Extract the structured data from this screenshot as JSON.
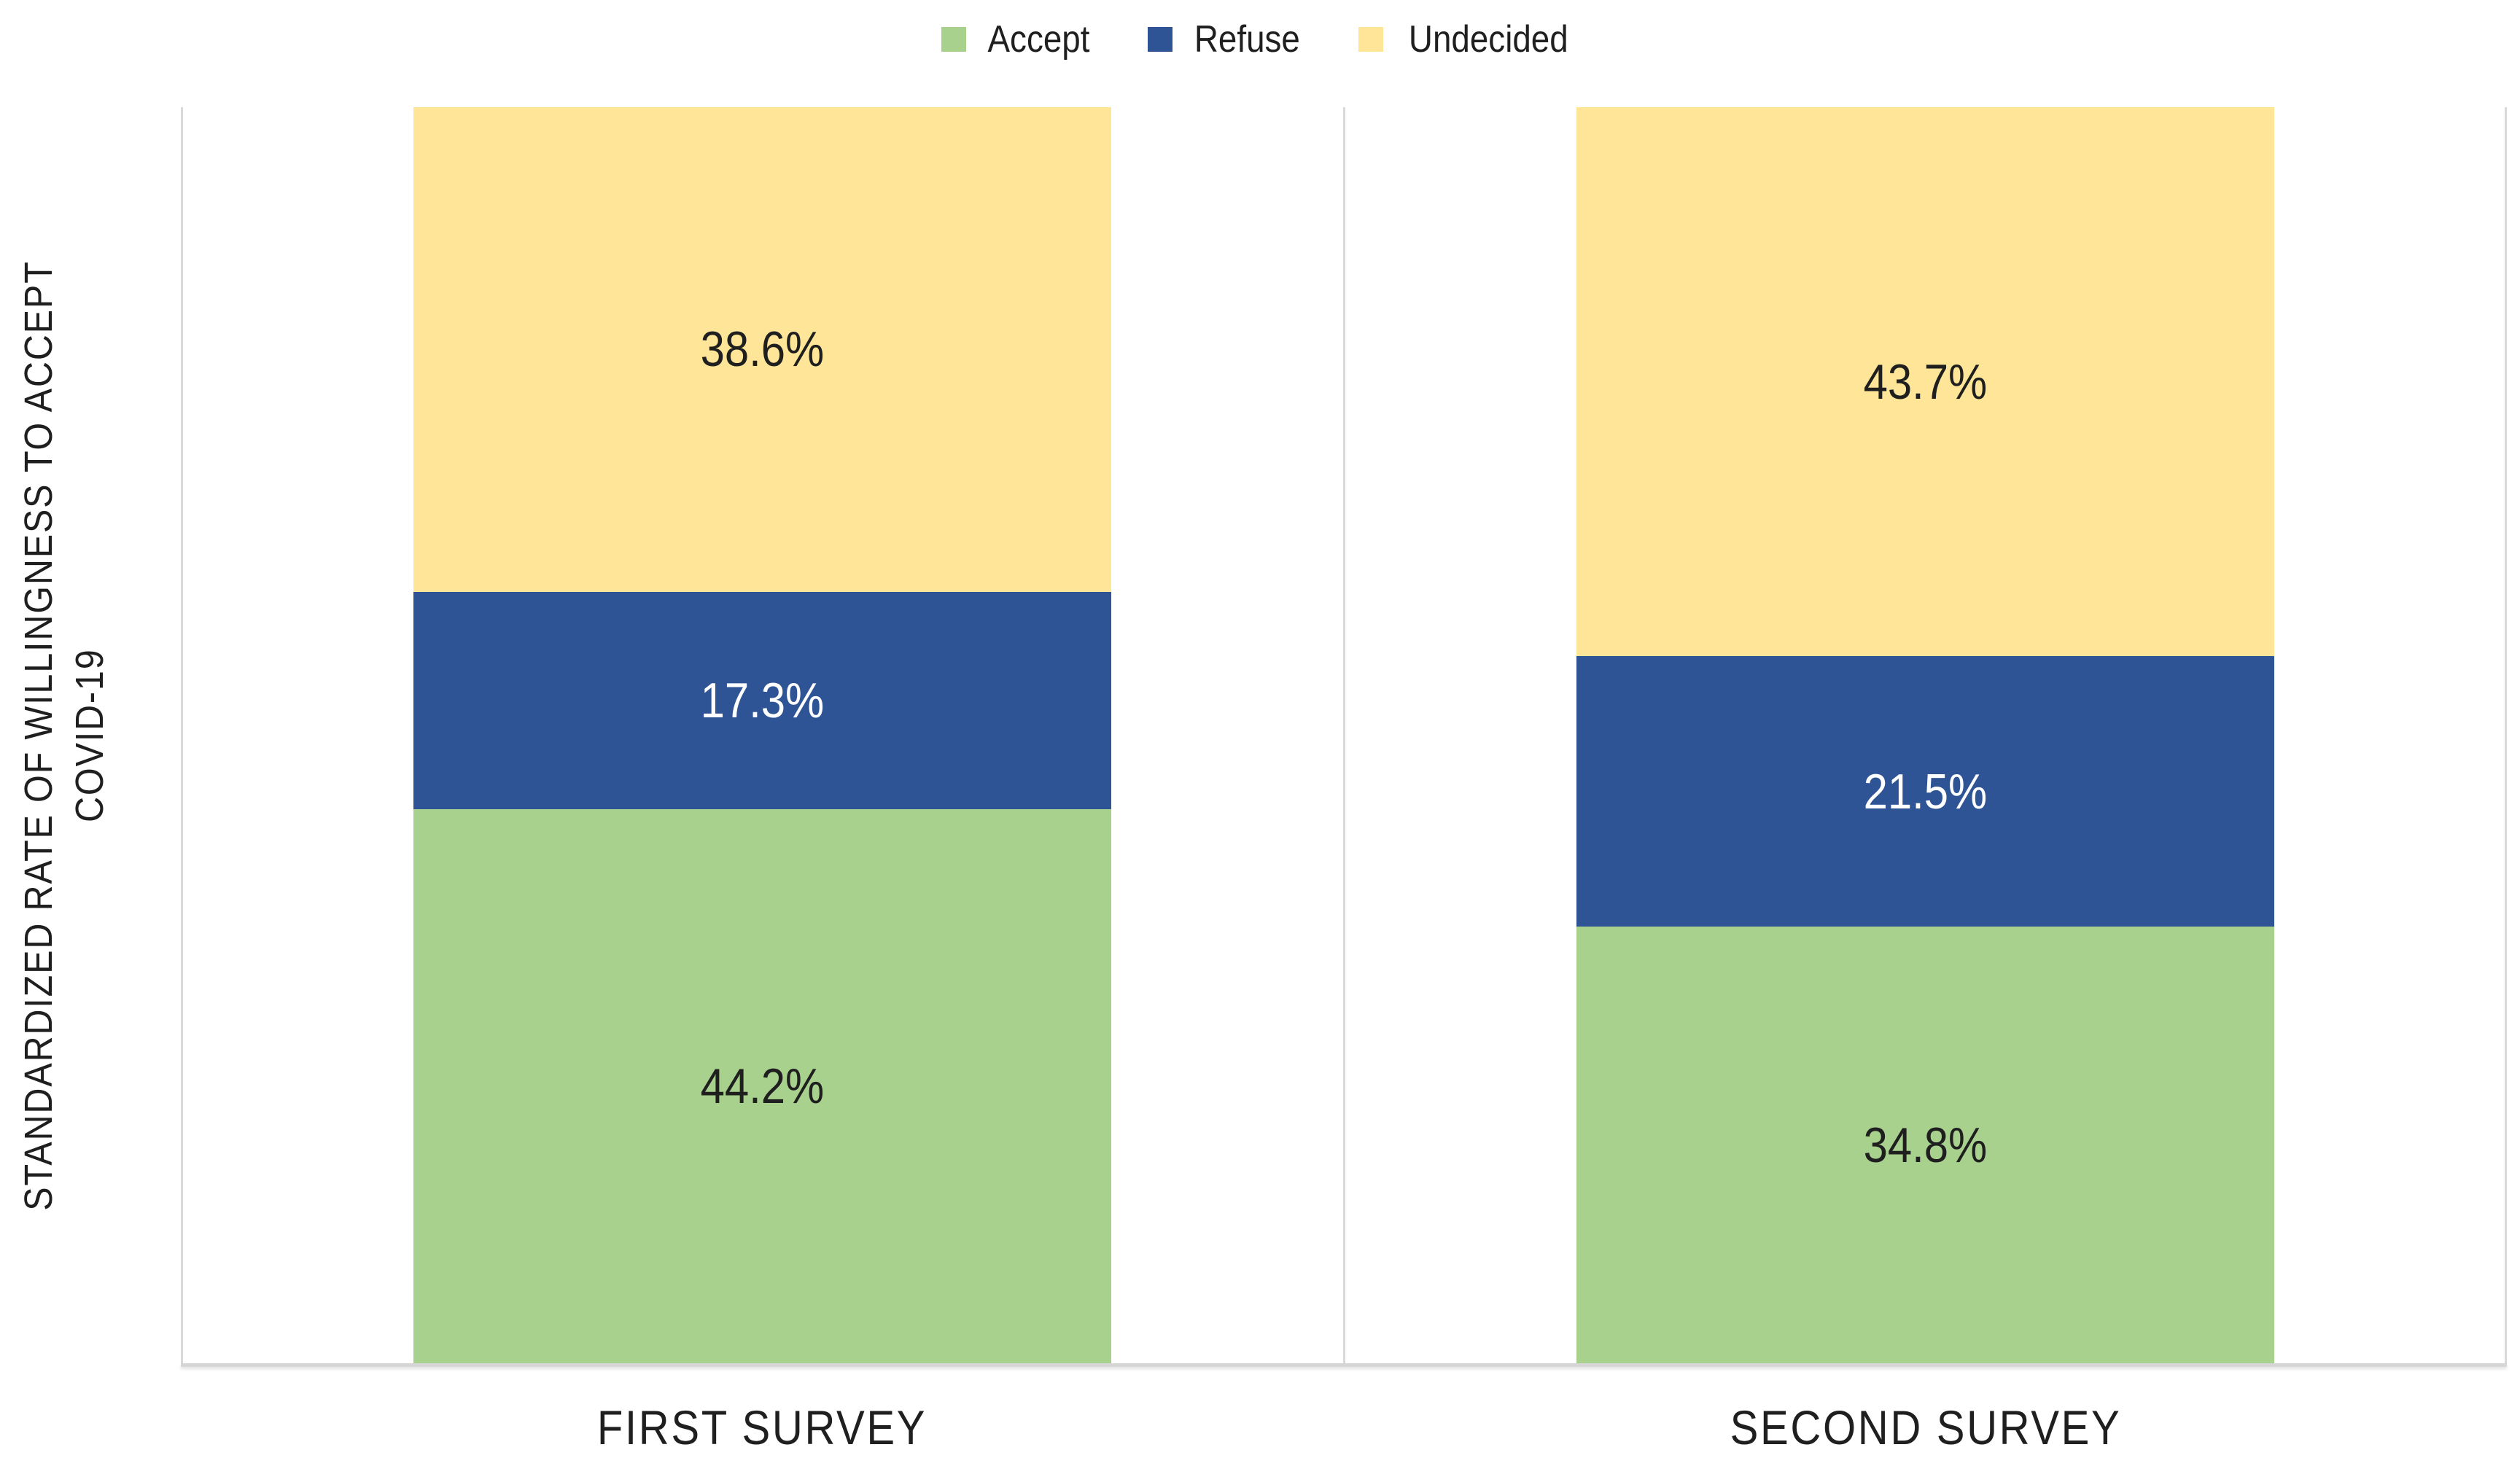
{
  "chart_data": {
    "type": "bar",
    "subtype": "stacked-100-percent",
    "orientation": "vertical",
    "categories": [
      "FIRST SURVEY",
      "SECOND SURVEY"
    ],
    "series": [
      {
        "name": "Accept",
        "color": "#A9D18E",
        "label_color": "#1F1F1F",
        "values": [
          44.2,
          34.8
        ]
      },
      {
        "name": "Refuse",
        "color": "#2F5496",
        "label_color": "#FFFFFF",
        "values": [
          17.3,
          21.5
        ]
      },
      {
        "name": "Undecided",
        "color": "#FFE597",
        "label_color": "#1F1F1F",
        "values": [
          38.6,
          43.7
        ]
      }
    ],
    "data_labels": [
      [
        "44.2%",
        "17.3%",
        "38.6%"
      ],
      [
        "34.8%",
        "21.5%",
        "43.7%"
      ]
    ],
    "value_suffix": "%",
    "ylabel": "STANDARDIZED RATE OF WILLINGNESS TO ACCEPT COVID-19",
    "ylabel_lines": [
      "STANDARDIZED RATE OF WILLINGNESS TO ACCEPT",
      "COVID-19"
    ],
    "xlabel": "",
    "title": "",
    "ylim": [
      0,
      100
    ],
    "legend_position": "top",
    "grid": "vertical category separator lines only"
  },
  "colors": {
    "background": "#FFFFFF",
    "gridline": "#D9D9D9",
    "axis_line": "#D6D6D6",
    "text": "#1F1F1F"
  }
}
